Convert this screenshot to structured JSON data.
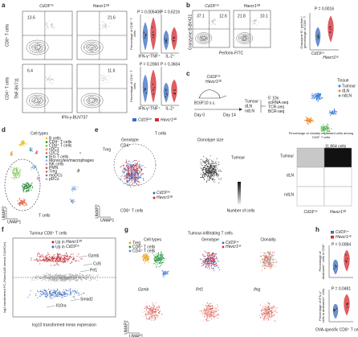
{
  "genotypes": [
    {
      "name": "Cd19",
      "sup": "Cre",
      "color": "#3a6cc0"
    },
    {
      "name": "Havcr1",
      "sup": "ΔB",
      "color": "#d42a30"
    }
  ],
  "a": {
    "label": "a",
    "rows": [
      "CD8⁺ T cells",
      "CD4⁺ T cells"
    ],
    "gates": [
      "13.6",
      "21.6",
      "6.4",
      "11.6"
    ],
    "y_axis": "TNF-BV711",
    "x_axis": "IFN-γ-BUV737",
    "y_labels": [
      "Percentage of CD8⁺ T cells",
      "Percentage of CD4⁺ T cells"
    ],
    "groups": [
      "IFN-γ⁺TNF⁺",
      "IL-2⁺"
    ],
    "p_values": [
      "P = 0.005406",
      "P = 0.6216",
      "P = 0.2060",
      "P = 0.3604"
    ]
  },
  "b": {
    "label": "b",
    "gates": [
      "37.1",
      "12.6",
      "21.8",
      "10.1"
    ],
    "y_axis": "Granzyme B-BV421",
    "x_axis": "Perforin-FITC",
    "y_label": "Granzyme B⁺ perforin⁺ (percentage of CD8⁺ T cells)",
    "p_value": "P = 0.0016"
  },
  "c": {
    "label": "c",
    "model": "B16F10 s.c.",
    "days": [
      "Day 0",
      "Day 14"
    ],
    "tissues": [
      "Tumour",
      "dLN",
      "ndLN"
    ],
    "assay": [
      "5′ 10x",
      "scRNA-seq",
      "TCR-seq",
      "BCR-seq"
    ],
    "umap_title": "Tissue",
    "cell_count": "11,864 cells",
    "tissue_colors": [
      "#3b7dd8",
      "#f08a2a",
      "#5bb55b"
    ]
  },
  "d": {
    "label": "d",
    "title": "Cell types",
    "cell_types": [
      "B cells",
      "CD4⁺ T cells",
      "CD8⁺ T cells",
      "cDC1",
      "cDC2",
      "IEG T cells",
      "Monocytes/macrophages",
      "NK cells",
      "PMN",
      "Treg",
      "moDCs",
      "pDCs"
    ],
    "colors": [
      "#e8c21c",
      "#2e8b3e",
      "#7fc45a",
      "#f29a3a",
      "#d45c8a",
      "#1f8f8a",
      "#9ab7e0",
      "#c8a0d8",
      "#8a6a4a",
      "#e85a3a",
      "#5a7ad0",
      "#b0b0b0"
    ],
    "gate_label": "T cells",
    "x_axis": "UMAP1",
    "y_axis": "UMAP2"
  },
  "e": {
    "label": "e",
    "title": "T cells",
    "panels": [
      "Genotype",
      "Clonotype size"
    ],
    "clusters": [
      "Treg",
      "CD4⁺",
      "CD8⁺ T cells"
    ],
    "region": "Tumour",
    "size_legend": "Number of cells",
    "heatmap_title": "Percentage of clonally expanded cells among CD8⁺ T cells",
    "rows": [
      "Tumour",
      "dLN",
      "ndLN"
    ],
    "x_axis": "UMAP1",
    "y_axis": "UMAP2"
  },
  "f": {
    "label": "f",
    "title": "Tumour CD8⁺ T cells",
    "up_prefix": "Up in",
    "genes": [
      "Gzmb",
      "Ccl5",
      "Prf1",
      "Smad2",
      "Il10ra"
    ],
    "y_axis": "log2 transformed FC (Havcr1ΔB versus Cd19Cre)",
    "x_axis": "log10 transformed mean expression"
  },
  "g": {
    "label": "g",
    "title": "Tumour-infiltrating T cells",
    "panels": [
      "Cell types",
      "Genotype",
      "Clonality"
    ],
    "cell_types": [
      "Treg",
      "CD8⁺ T cells",
      "CD4⁺ T cells"
    ],
    "type_colors": [
      "#e8a020",
      "#2e9a4a",
      "#5a8ad8"
    ],
    "genes": [
      "Gzmb",
      "Prf1",
      "Ifng"
    ],
    "x_axis": "UMAP1",
    "y_axis": "UMAP2"
  },
  "h": {
    "label": "h",
    "p_values": [
      "P = 0.0084",
      "P = 0.0481"
    ],
    "y_labels": [
      "Percentage of dextramer⁺ cells in CD8⁺ T cells",
      "Percentage of IFN-γ⁺ cells in dextramer⁺ cells"
    ],
    "x_label": "OVA-specific CD8⁺ T cells"
  }
}
